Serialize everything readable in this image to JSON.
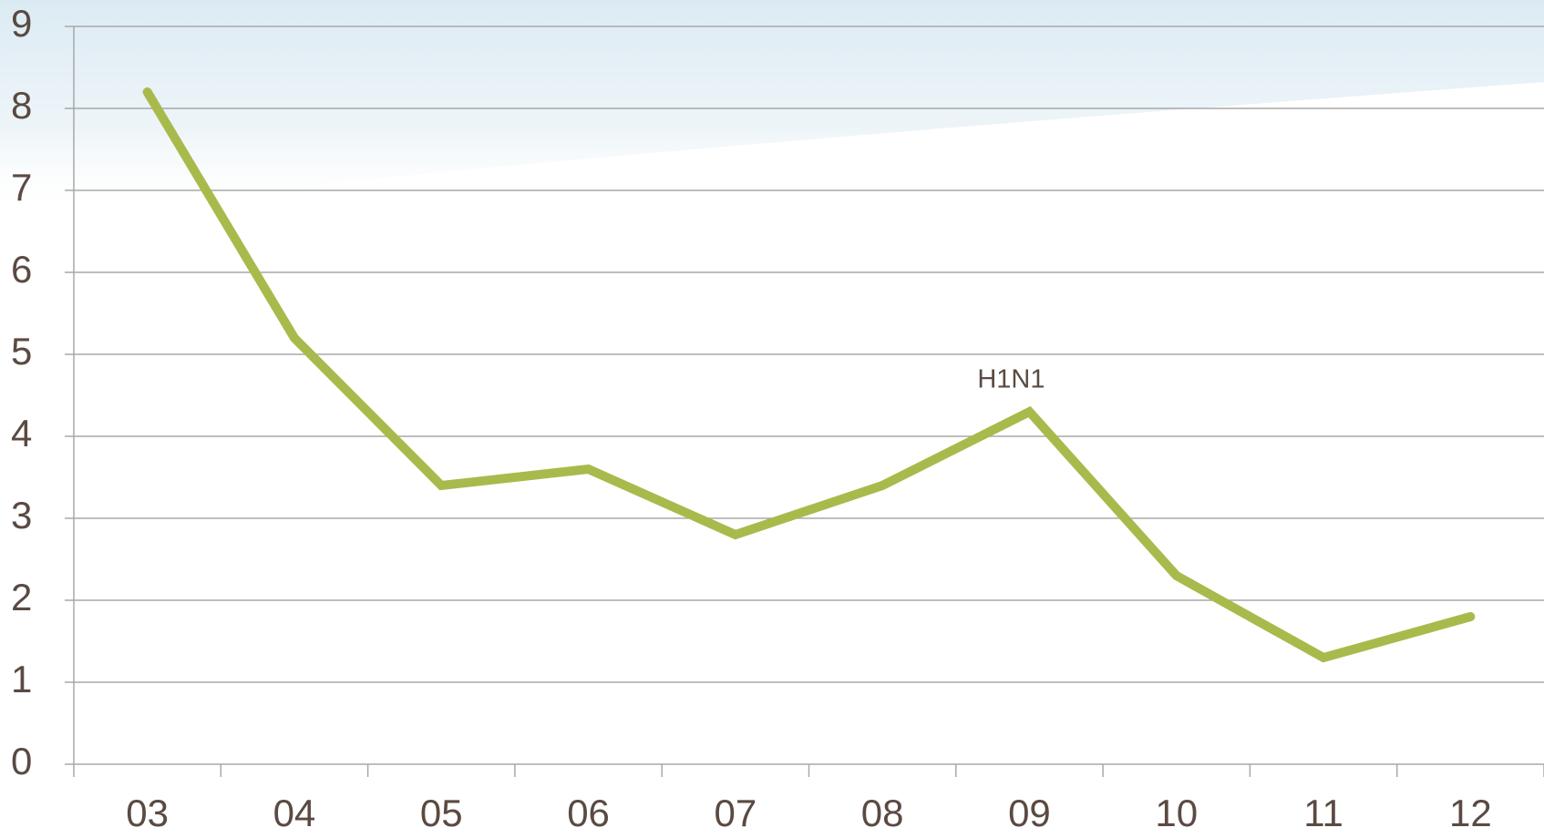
{
  "chart_data": {
    "type": "line",
    "categories": [
      "03",
      "04",
      "05",
      "06",
      "07",
      "08",
      "09",
      "10",
      "11",
      "12"
    ],
    "values": [
      8.2,
      5.2,
      3.4,
      3.6,
      2.8,
      3.4,
      4.3,
      2.3,
      1.3,
      1.8
    ],
    "color": "#a9ba4c",
    "ylim": [
      0,
      9
    ],
    "yticks": [
      0,
      1,
      2,
      3,
      4,
      5,
      6,
      7,
      8,
      9
    ],
    "grid": true,
    "annotations": [
      {
        "text": "H1N1",
        "category": "09"
      }
    ]
  }
}
